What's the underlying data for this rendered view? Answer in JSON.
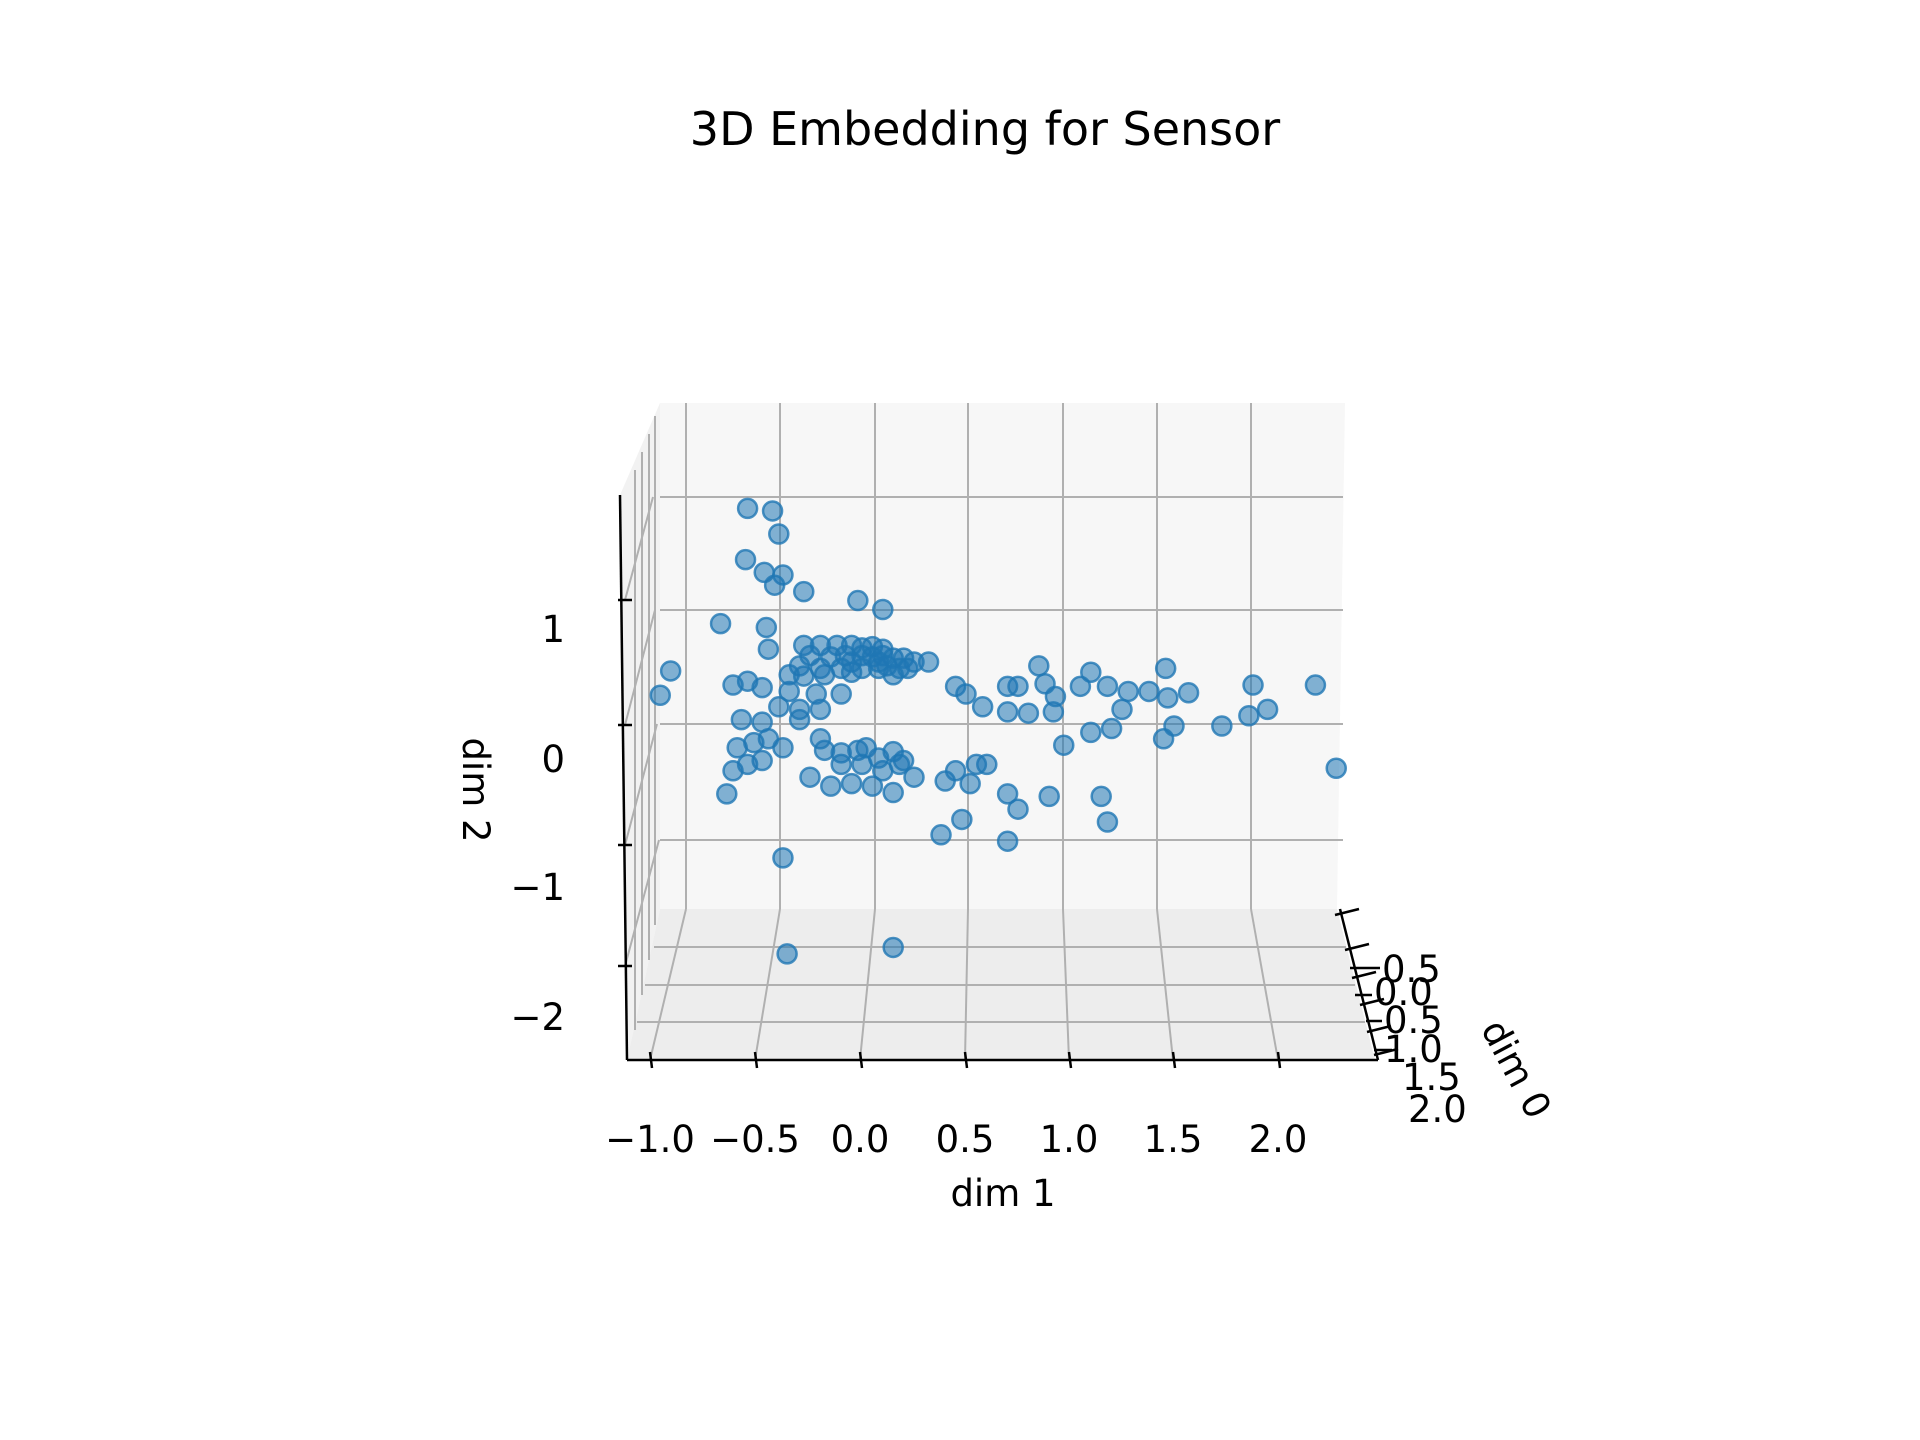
{
  "chart_data": {
    "type": "scatter",
    "projection": "3d",
    "title": "3D Embedding for Sensor",
    "xlabel": "dim 1",
    "ylabel": "dim 2",
    "zlabel": "dim 0",
    "dim1_ticks": [
      "−1.0",
      "−0.5",
      "0.0",
      "0.5",
      "1.0",
      "1.5",
      "2.0"
    ],
    "dim2_ticks": [
      "1",
      "0",
      "−1",
      "−2"
    ],
    "dim0_ticks": [
      "0.5",
      "0.0",
      "0.5",
      "1.0",
      "1.5",
      "2.0"
    ],
    "grid": true,
    "marker_color": "#1f77b4",
    "pane_color": "#f7f7f7",
    "points": [
      [
        -0.55,
        1.95
      ],
      [
        -0.43,
        1.93
      ],
      [
        -0.4,
        1.75
      ],
      [
        -0.56,
        1.55
      ],
      [
        -0.47,
        1.45
      ],
      [
        -0.38,
        1.43
      ],
      [
        -0.28,
        1.3
      ],
      [
        -0.02,
        1.23
      ],
      [
        0.1,
        1.16
      ],
      [
        -0.68,
        1.05
      ],
      [
        -0.46,
        1.02
      ],
      [
        -0.28,
        0.88
      ],
      [
        -0.2,
        0.88
      ],
      [
        -0.12,
        0.88
      ],
      [
        -0.05,
        0.88
      ],
      [
        0.0,
        0.86
      ],
      [
        0.05,
        0.87
      ],
      [
        0.1,
        0.85
      ],
      [
        -0.25,
        0.8
      ],
      [
        -0.15,
        0.79
      ],
      [
        -0.08,
        0.8
      ],
      [
        0.0,
        0.8
      ],
      [
        0.05,
        0.79
      ],
      [
        0.1,
        0.8
      ],
      [
        0.15,
        0.78
      ],
      [
        0.2,
        0.78
      ],
      [
        0.25,
        0.75
      ],
      [
        -0.3,
        0.72
      ],
      [
        -0.2,
        0.7
      ],
      [
        -0.1,
        0.7
      ],
      [
        0.0,
        0.7
      ],
      [
        0.08,
        0.7
      ],
      [
        0.12,
        0.72
      ],
      [
        0.18,
        0.7
      ],
      [
        0.22,
        0.7
      ],
      [
        0.08,
        0.75
      ],
      [
        -0.05,
        0.75
      ],
      [
        -0.35,
        0.65
      ],
      [
        -0.28,
        0.64
      ],
      [
        -0.18,
        0.65
      ],
      [
        -0.05,
        0.67
      ],
      [
        0.15,
        0.65
      ],
      [
        0.32,
        0.75
      ],
      [
        1.46,
        0.7
      ],
      [
        0.85,
        0.72
      ],
      [
        1.1,
        0.67
      ],
      [
        -0.45,
        0.85
      ],
      [
        -0.92,
        0.68
      ],
      [
        -0.62,
        0.57
      ],
      [
        -0.55,
        0.6
      ],
      [
        -0.48,
        0.55
      ],
      [
        -0.35,
        0.52
      ],
      [
        -0.22,
        0.5
      ],
      [
        -0.1,
        0.5
      ],
      [
        -0.4,
        0.4
      ],
      [
        -0.3,
        0.38
      ],
      [
        -0.2,
        0.38
      ],
      [
        0.45,
        0.56
      ],
      [
        0.5,
        0.5
      ],
      [
        0.58,
        0.4
      ],
      [
        0.7,
        0.56
      ],
      [
        0.75,
        0.56
      ],
      [
        0.88,
        0.58
      ],
      [
        0.93,
        0.48
      ],
      [
        1.05,
        0.56
      ],
      [
        1.18,
        0.56
      ],
      [
        1.28,
        0.52
      ],
      [
        1.38,
        0.52
      ],
      [
        1.47,
        0.47
      ],
      [
        1.57,
        0.51
      ],
      [
        1.88,
        0.57
      ],
      [
        2.18,
        0.57
      ],
      [
        -0.97,
        0.49
      ],
      [
        -0.58,
        0.3
      ],
      [
        -0.48,
        0.28
      ],
      [
        -0.3,
        0.3
      ],
      [
        -0.45,
        0.15
      ],
      [
        -0.52,
        0.12
      ],
      [
        -0.6,
        0.08
      ],
      [
        -0.38,
        0.08
      ],
      [
        -0.2,
        0.15
      ],
      [
        -0.18,
        0.06
      ],
      [
        -0.1,
        0.04
      ],
      [
        -0.02,
        0.06
      ],
      [
        0.02,
        0.08
      ],
      [
        0.08,
        0.0
      ],
      [
        0.15,
        0.05
      ],
      [
        0.2,
        -0.02
      ],
      [
        0.0,
        -0.05
      ],
      [
        0.1,
        -0.1
      ],
      [
        -0.1,
        -0.05
      ],
      [
        0.8,
        0.35
      ],
      [
        0.92,
        0.36
      ],
      [
        0.7,
        0.36
      ],
      [
        1.25,
        0.38
      ],
      [
        1.2,
        0.23
      ],
      [
        1.1,
        0.2
      ],
      [
        0.97,
        0.1
      ],
      [
        1.45,
        0.15
      ],
      [
        1.5,
        0.25
      ],
      [
        1.73,
        0.25
      ],
      [
        1.86,
        0.33
      ],
      [
        1.95,
        0.38
      ],
      [
        -0.62,
        -0.1
      ],
      [
        -0.55,
        -0.05
      ],
      [
        -0.48,
        -0.02
      ],
      [
        -0.65,
        -0.28
      ],
      [
        -0.25,
        -0.15
      ],
      [
        -0.15,
        -0.22
      ],
      [
        0.05,
        -0.22
      ],
      [
        0.15,
        -0.27
      ],
      [
        0.25,
        -0.15
      ],
      [
        0.4,
        -0.18
      ],
      [
        0.52,
        -0.2
      ],
      [
        0.6,
        -0.05
      ],
      [
        0.45,
        -0.1
      ],
      [
        0.55,
        -0.05
      ],
      [
        0.7,
        -0.28
      ],
      [
        0.75,
        -0.4
      ],
      [
        0.9,
        -0.3
      ],
      [
        1.15,
        -0.3
      ],
      [
        1.18,
        -0.5
      ],
      [
        2.28,
        -0.08
      ],
      [
        0.38,
        -0.6
      ],
      [
        0.48,
        -0.48
      ],
      [
        0.7,
        -0.65
      ],
      [
        -0.38,
        -0.78
      ],
      [
        -0.05,
        -0.2
      ],
      [
        0.18,
        -0.05
      ],
      [
        -0.36,
        -1.53
      ],
      [
        0.15,
        -1.48
      ],
      [
        -0.42,
        1.35
      ]
    ]
  }
}
